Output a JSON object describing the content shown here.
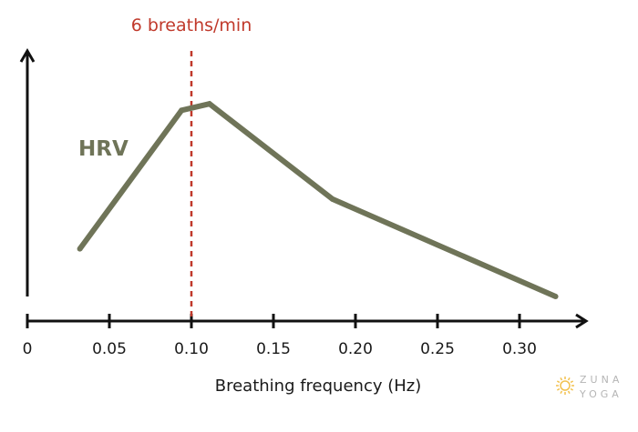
{
  "chart_data": {
    "type": "line",
    "xlabel": "Breathing frequency (Hz)",
    "ylabel": "",
    "xlim": [
      0,
      0.35
    ],
    "x_ticks": [
      {
        "value": 0,
        "label": "0"
      },
      {
        "value": 0.05,
        "label": "0.05"
      },
      {
        "value": 0.1,
        "label": "0.10"
      },
      {
        "value": 0.15,
        "label": "0.15"
      },
      {
        "value": 0.2,
        "label": "0.20"
      },
      {
        "value": 0.25,
        "label": "0.25"
      },
      {
        "value": 0.3,
        "label": "0.30"
      }
    ],
    "grid": false,
    "legend": "none",
    "series": [
      {
        "name": "HRV",
        "color": "#6f7458",
        "points": [
          {
            "x": 0.032,
            "y": 0.22
          },
          {
            "x": 0.094,
            "y": 0.86
          },
          {
            "x": 0.111,
            "y": 0.89
          },
          {
            "x": 0.186,
            "y": 0.45
          },
          {
            "x": 0.322,
            "y": 0.0
          }
        ]
      }
    ],
    "annotations": [
      {
        "type": "vertical-line",
        "x": 0.1,
        "label": "6 breaths/min",
        "color": "#c0392b"
      }
    ]
  },
  "logo": {
    "line1": "ZUNA",
    "line2": "YOGA",
    "color": "#f2c14e"
  }
}
